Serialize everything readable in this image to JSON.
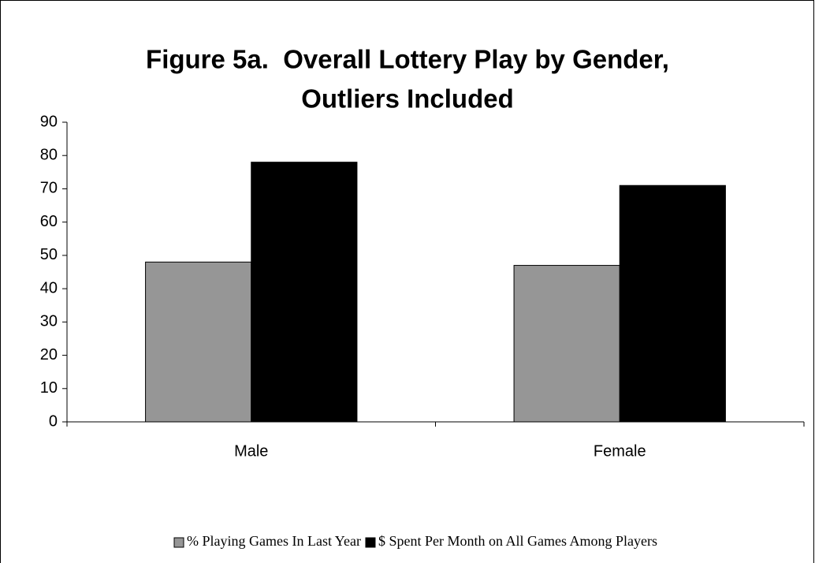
{
  "chart_data": {
    "type": "bar",
    "title": [
      "Figure 5a.  Overall Lottery Play by Gender,",
      "Outliers Included"
    ],
    "categories": [
      "Male",
      "Female"
    ],
    "series": [
      {
        "name": "% Playing Games In Last Year",
        "color": "#969696",
        "values": [
          48,
          47
        ]
      },
      {
        "name": "$ Spent Per Month on All Games Among Players",
        "color": "#000000",
        "values": [
          78,
          71
        ]
      }
    ],
    "ylim": [
      0,
      90
    ],
    "yticks": [
      0,
      10,
      20,
      30,
      40,
      50,
      60,
      70,
      80,
      90
    ],
    "grid": false,
    "legend": "bottom"
  }
}
